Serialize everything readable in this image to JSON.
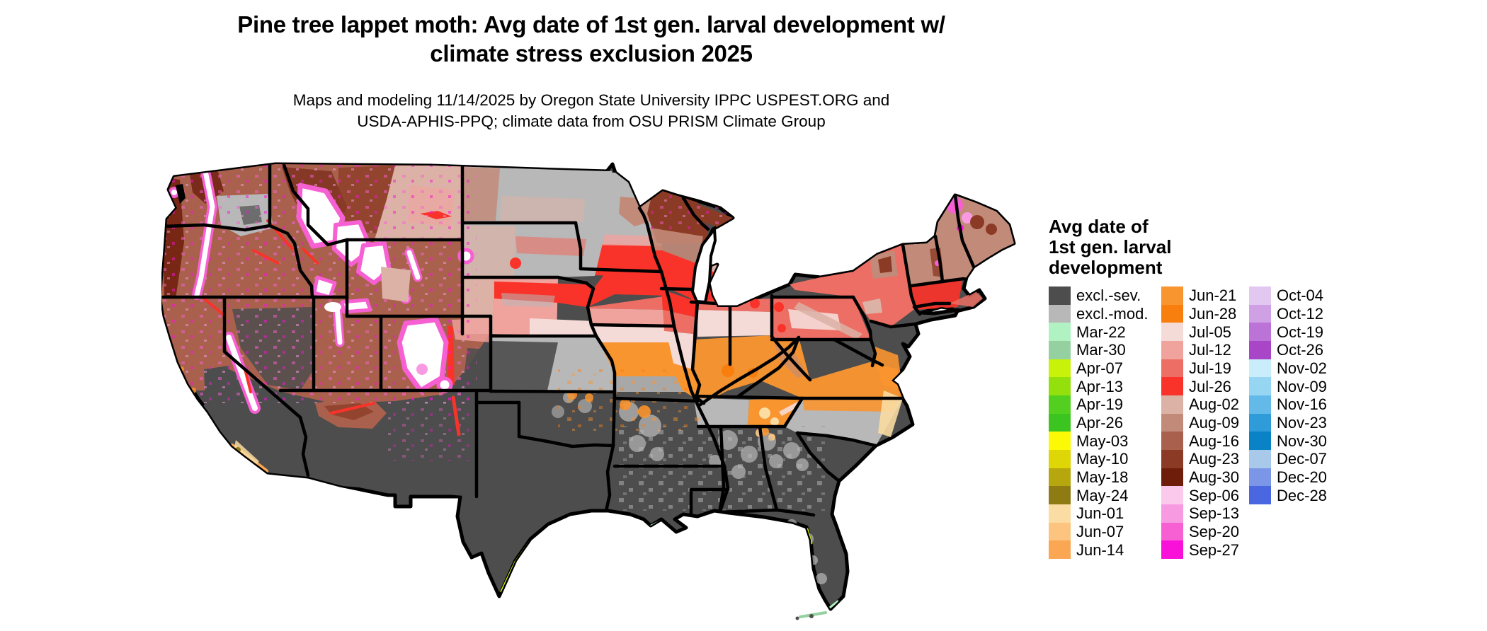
{
  "title": {
    "line1": "Pine tree lappet moth: Avg date of 1st gen. larval development w/",
    "line2": "climate stress exclusion 2025"
  },
  "subtitle": {
    "line1": "Maps and modeling 11/14/2025 by Oregon State University IPPC USPEST.ORG and",
    "line2": "USDA-APHIS-PPQ; climate data from OSU PRISM Climate Group"
  },
  "legend": {
    "title_lines": [
      "Avg date of",
      "1st gen. larval",
      "development"
    ],
    "columns": [
      [
        {
          "label": "excl.-sev.",
          "color": "#4d4d4d"
        },
        {
          "label": "excl.-mod.",
          "color": "#b8b8b8"
        },
        {
          "label": "Mar-22",
          "color": "#b0f2c2"
        },
        {
          "label": "Mar-30",
          "color": "#95d1a0"
        },
        {
          "label": "Apr-07",
          "color": "#c9f20b"
        },
        {
          "label": "Apr-13",
          "color": "#93e00c"
        },
        {
          "label": "Apr-19",
          "color": "#53d01f"
        },
        {
          "label": "Apr-26",
          "color": "#3cc421"
        },
        {
          "label": "May-03",
          "color": "#fbf906"
        },
        {
          "label": "May-10",
          "color": "#ded607"
        },
        {
          "label": "May-18",
          "color": "#b5a70d"
        },
        {
          "label": "May-24",
          "color": "#8e7b14"
        },
        {
          "label": "Jun-01",
          "color": "#fbdca2"
        },
        {
          "label": "Jun-07",
          "color": "#fcc47e"
        },
        {
          "label": "Jun-14",
          "color": "#fba653"
        }
      ],
      [
        {
          "label": "Jun-21",
          "color": "#f9952f"
        },
        {
          "label": "Jun-28",
          "color": "#f87e0e"
        },
        {
          "label": "Jul-05",
          "color": "#f5dbd7"
        },
        {
          "label": "Jul-12",
          "color": "#f0a39d"
        },
        {
          "label": "Jul-19",
          "color": "#ec6e64"
        },
        {
          "label": "Jul-26",
          "color": "#fa332a"
        },
        {
          "label": "Aug-02",
          "color": "#dcb2a6"
        },
        {
          "label": "Aug-09",
          "color": "#c28b79"
        },
        {
          "label": "Aug-16",
          "color": "#a9614d"
        },
        {
          "label": "Aug-23",
          "color": "#8b3b25"
        },
        {
          "label": "Aug-30",
          "color": "#6e1d0b"
        },
        {
          "label": "Sep-06",
          "color": "#fac9ec"
        },
        {
          "label": "Sep-13",
          "color": "#f89ae2"
        },
        {
          "label": "Sep-20",
          "color": "#f760d2"
        },
        {
          "label": "Sep-27",
          "color": "#f911da"
        }
      ],
      [
        {
          "label": "Oct-04",
          "color": "#e2c8f0"
        },
        {
          "label": "Oct-12",
          "color": "#cfa0e4"
        },
        {
          "label": "Oct-19",
          "color": "#bb73d7"
        },
        {
          "label": "Oct-26",
          "color": "#a946c7"
        },
        {
          "label": "Nov-02",
          "color": "#c9edfa"
        },
        {
          "label": "Nov-09",
          "color": "#97d6f3"
        },
        {
          "label": "Nov-16",
          "color": "#63bae9"
        },
        {
          "label": "Nov-23",
          "color": "#2f9cd9"
        },
        {
          "label": "Nov-30",
          "color": "#0a82c6"
        },
        {
          "label": "Dec-07",
          "color": "#a8c9e9"
        },
        {
          "label": "Dec-20",
          "color": "#7b96e6"
        },
        {
          "label": "Dec-28",
          "color": "#4a66e0"
        }
      ]
    ]
  },
  "map": {
    "region": "Continental United States",
    "kind": "raster choropleth of average date of 1st generation larval development with climate stress exclusion",
    "no_data_color": "#ffffff",
    "border_color": "#000000"
  }
}
